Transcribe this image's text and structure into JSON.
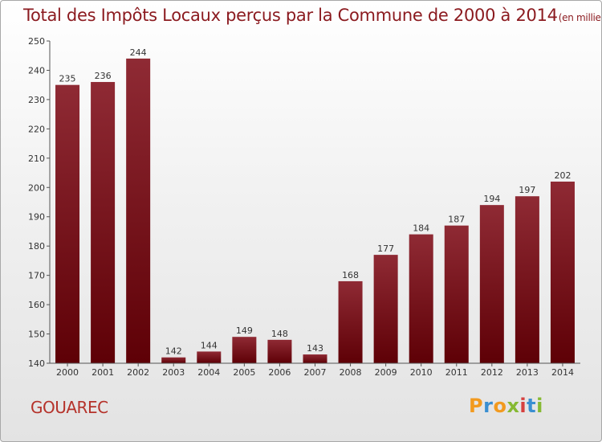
{
  "title": "Total des Impôts Locaux perçus par la Commune de 2000 à 2014",
  "title_unit": "(en milliers d'€)",
  "commune": "GOUAREC",
  "logo": {
    "letters": [
      "P",
      "r",
      "o",
      "x",
      "i",
      "t",
      "i"
    ],
    "colors": [
      "#f29a1f",
      "#3a8fd1",
      "#f29a1f",
      "#86b933",
      "#d6403f",
      "#3a8fd1",
      "#86b933"
    ]
  },
  "colors": {
    "bar_top": "#8f2a34",
    "bar_bottom": "#5e0006",
    "title": "#8b1a1f",
    "commune": "#b5322a"
  },
  "chart_data": {
    "type": "bar",
    "categories": [
      "2000",
      "2001",
      "2002",
      "2003",
      "2004",
      "2005",
      "2006",
      "2007",
      "2008",
      "2009",
      "2010",
      "2011",
      "2012",
      "2013",
      "2014"
    ],
    "values": [
      235,
      236,
      244,
      142,
      144,
      149,
      148,
      143,
      168,
      177,
      184,
      187,
      194,
      197,
      202
    ],
    "yticks": [
      140,
      150,
      160,
      170,
      180,
      190,
      200,
      210,
      220,
      230,
      240,
      250
    ],
    "ylim": [
      140,
      250
    ],
    "grid": false,
    "legend": "none"
  }
}
